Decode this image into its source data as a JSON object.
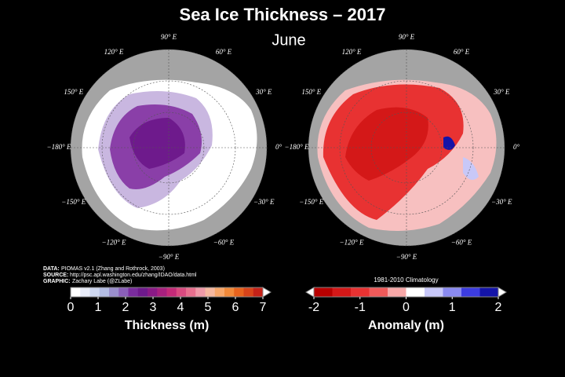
{
  "header": {
    "title": "Sea Ice Thickness – 2017",
    "subtitle": "June"
  },
  "maps": [
    {
      "longitude_labels": [
        "90° E",
        "60° E",
        "30° E",
        "0°",
        "−30° E",
        "−60° E",
        "−90° E",
        "−120° E",
        "−150° E",
        "−180° E",
        "150° E",
        "120° E"
      ]
    },
    {
      "longitude_labels": [
        "90° E",
        "60° E",
        "30° E",
        "0°",
        "−30° E",
        "−60° E",
        "−90° E",
        "−120° E",
        "−150° E",
        "−180° E",
        "150° E",
        "120° E"
      ]
    }
  ],
  "credits": [
    {
      "label": "DATA:",
      "text": "PIOMAS v2.1 (Zhang and Rothrock, 2003)"
    },
    {
      "label": "SOURCE:",
      "text": "http://psc.apl.washington.edu/zhang/IDAO/data.html"
    },
    {
      "label": "GRAPHIC:",
      "text": "Zachary Labe (@ZLabe)"
    }
  ],
  "colorbars": [
    {
      "label": "Thickness (m)",
      "lim": [
        0,
        7
      ],
      "ticks": [
        0,
        1,
        2,
        3,
        4,
        5,
        6,
        7
      ],
      "colors": [
        "#ffffff",
        "#e8ecf8",
        "#cfd8f0",
        "#b4bde3",
        "#9a8fcc",
        "#8a5fb8",
        "#7a2c9e",
        "#6e1a8c",
        "#8a1a86",
        "#a8207e",
        "#c42a78",
        "#d94a80",
        "#e76f8e",
        "#ef9aa8",
        "#f6b8a0",
        "#f7a76a",
        "#f18a3a",
        "#e8641e",
        "#d8441a",
        "#c42218"
      ],
      "arrow_color": "#ffffff"
    },
    {
      "note": "1981-2010 Climatology",
      "label": "Anomaly (m)",
      "lim": [
        -2,
        2
      ],
      "ticks": [
        -2,
        -1,
        0,
        1,
        2
      ],
      "colors": [
        "#b80000",
        "#d41818",
        "#e83232",
        "#f05a5a",
        "#f7a8a8",
        "#ffffff",
        "#c8c8f8",
        "#8a8af0",
        "#3c3ce0",
        "#1414a8"
      ],
      "arrow_color": "#ffffff"
    }
  ]
}
